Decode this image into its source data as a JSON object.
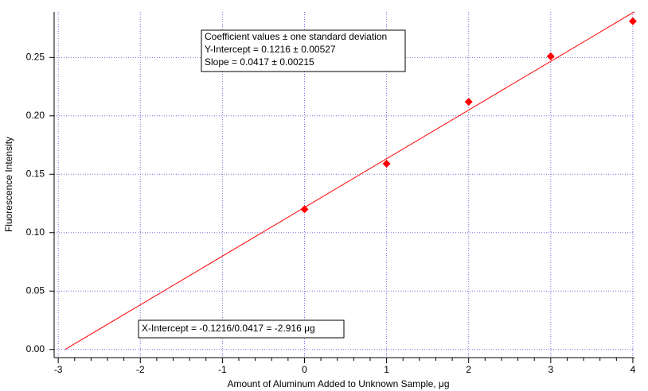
{
  "chart_data": {
    "type": "scatter",
    "xlabel": "Amount of Aluminum Added to Unknown Sample, μg",
    "ylabel": "Fluorescence Intensity",
    "xlim": [
      -3.05,
      4.02
    ],
    "ylim": [
      -0.007,
      0.289
    ],
    "xticks": [
      -3,
      -2,
      -1,
      0,
      1,
      2,
      3,
      4
    ],
    "yticks": [
      {
        "value": 0,
        "label": "0.00"
      },
      {
        "value": 0.05,
        "label": "0.05"
      },
      {
        "value": 0.1,
        "label": "0.10"
      },
      {
        "value": 0.15,
        "label": "0.15"
      },
      {
        "value": 0.2,
        "label": "0.20"
      },
      {
        "value": 0.25,
        "label": "0.25"
      }
    ],
    "grid": true,
    "series": [
      {
        "name": "data",
        "kind": "points",
        "color": "#ff0000",
        "x": [
          0,
          1,
          2,
          3,
          4
        ],
        "values": [
          0.12,
          0.159,
          0.212,
          0.251,
          0.281
        ]
      },
      {
        "name": "fit",
        "kind": "line",
        "color": "#ff0000",
        "x": [
          -2.916,
          4.02
        ],
        "values": [
          0,
          0.2892
        ]
      }
    ],
    "annotations": [
      {
        "lines": [
          "Coefficient values ± one standard deviation",
          "Y-Intercept = 0.1216 ± 0.00527",
          "Slope = 0.0417 ± 0.00215"
        ]
      },
      {
        "lines": [
          "X-Intercept = -0.1216/0.0417 = -2.916 μg"
        ]
      }
    ]
  }
}
